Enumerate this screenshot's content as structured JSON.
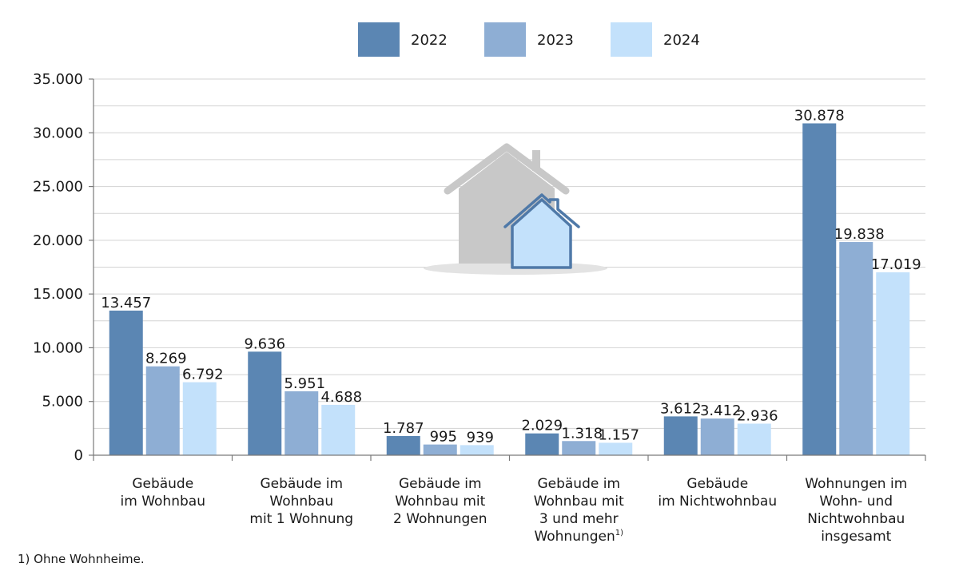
{
  "chart_data": {
    "type": "bar",
    "categories": [
      [
        "Gebäude",
        "im Wohnbau"
      ],
      [
        "Gebäude im",
        "Wohnbau",
        "mit 1 Wohnung"
      ],
      [
        "Gebäude im",
        "Wohnbau mit",
        "2 Wohnungen"
      ],
      [
        "Gebäude im",
        "Wohnbau mit",
        "3 und mehr",
        "Wohnungen"
      ],
      [
        "Gebäude",
        "im Nichtwohnbau"
      ],
      [
        "Wohnungen im",
        "Wohn- und",
        "Nichtwohnbau",
        "insgesamt"
      ]
    ],
    "category_footnote_marks": [
      "",
      "",
      "",
      "1)",
      "",
      ""
    ],
    "series": [
      {
        "name": "2022",
        "color": "#5b86b3",
        "values": [
          13457,
          9636,
          1787,
          2029,
          3612,
          30878
        ],
        "labels": [
          "13.457",
          "9.636",
          "1.787",
          "2.029",
          "3.612",
          "30.878"
        ]
      },
      {
        "name": "2023",
        "color": "#8eaed4",
        "values": [
          8269,
          5951,
          995,
          1318,
          3412,
          19838
        ],
        "labels": [
          "8.269",
          "5.951",
          "995",
          "1.318",
          "3.412",
          "19.838"
        ]
      },
      {
        "name": "2024",
        "color": "#c3e1fb",
        "values": [
          6792,
          4688,
          939,
          1157,
          2936,
          17019
        ],
        "labels": [
          "6.792",
          "4.688",
          "939",
          "1.157",
          "2.936",
          "17.019"
        ]
      }
    ],
    "ylim": [
      0,
      35000
    ],
    "yticks": [
      0,
      5000,
      10000,
      15000,
      20000,
      25000,
      30000,
      35000
    ],
    "ytick_labels": [
      "0",
      "5.000",
      "10.000",
      "15.000",
      "20.000",
      "25.000",
      "30.000",
      "35.000"
    ],
    "grid": true,
    "legend_position": "top-center",
    "footnote": "1) Ohne Wohnheime."
  },
  "decor": {
    "house_icon": "house-icon"
  }
}
